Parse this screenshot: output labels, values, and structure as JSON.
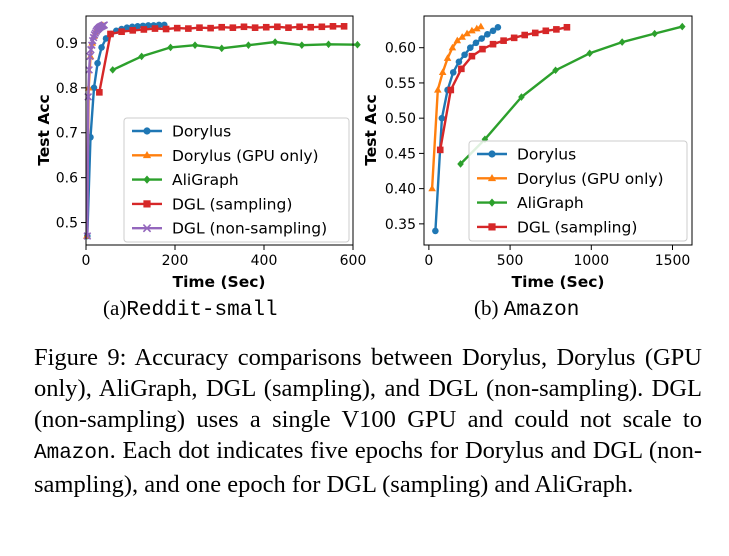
{
  "colors": {
    "Dorylus": "#1f77b4",
    "Dorylus (GPU only)": "#ff7f0e",
    "AliGraph": "#2ca02c",
    "DGL (sampling)": "#d62728",
    "DGL (non-sampling)": "#9467bd"
  },
  "chart_data": [
    {
      "type": "line",
      "xlabel": "Time (Sec)",
      "ylabel": "Test Acc",
      "xlim": [
        0,
        600
      ],
      "ylim": [
        0.45,
        0.96
      ],
      "xticks": [
        0,
        200,
        400,
        600
      ],
      "yticks": [
        0.5,
        0.6,
        0.7,
        0.8,
        0.9
      ],
      "legend_position": "lower-right",
      "series": [
        {
          "name": "Dorylus",
          "marker": "circle",
          "x": [
            3,
            10,
            18,
            26,
            35,
            45,
            56,
            68,
            80,
            92,
            104,
            116,
            128,
            140,
            152,
            164,
            176
          ],
          "y": [
            0.47,
            0.69,
            0.8,
            0.855,
            0.89,
            0.91,
            0.92,
            0.927,
            0.931,
            0.934,
            0.936,
            0.937,
            0.938,
            0.939,
            0.939,
            0.94,
            0.94
          ]
        },
        {
          "name": "Dorylus (GPU only)",
          "marker": "triangle",
          "x": [
            2,
            6,
            10,
            14,
            18,
            22,
            26,
            30,
            34,
            38
          ],
          "y": [
            0.47,
            0.8,
            0.87,
            0.9,
            0.915,
            0.925,
            0.93,
            0.934,
            0.937,
            0.939
          ]
        },
        {
          "name": "AliGraph",
          "marker": "diamond",
          "x": [
            60,
            125,
            190,
            245,
            305,
            365,
            425,
            485,
            545,
            610
          ],
          "y": [
            0.84,
            0.87,
            0.89,
            0.895,
            0.888,
            0.895,
            0.902,
            0.895,
            0.897,
            0.896
          ]
        },
        {
          "name": "DGL (sampling)",
          "marker": "square",
          "x": [
            30,
            55,
            80,
            105,
            130,
            155,
            180,
            205,
            230,
            255,
            280,
            305,
            330,
            355,
            380,
            405,
            430,
            455,
            480,
            505,
            530,
            555,
            580
          ],
          "y": [
            0.79,
            0.92,
            0.925,
            0.928,
            0.93,
            0.932,
            0.931,
            0.933,
            0.932,
            0.934,
            0.933,
            0.935,
            0.934,
            0.936,
            0.934,
            0.935,
            0.936,
            0.934,
            0.936,
            0.935,
            0.936,
            0.937,
            0.937
          ]
        },
        {
          "name": "DGL (non-sampling)",
          "marker": "x",
          "x": [
            3,
            5,
            7,
            9,
            11,
            13,
            15,
            17,
            19,
            21,
            23,
            25,
            27,
            29,
            31,
            33,
            35,
            37,
            39,
            41
          ],
          "y": [
            0.47,
            0.78,
            0.84,
            0.87,
            0.885,
            0.895,
            0.905,
            0.912,
            0.918,
            0.922,
            0.926,
            0.929,
            0.931,
            0.933,
            0.935,
            0.936,
            0.937,
            0.938,
            0.939,
            0.94
          ]
        }
      ]
    },
    {
      "type": "line",
      "xlabel": "Time (Sec)",
      "ylabel": "Test Acc",
      "xlim": [
        -30,
        1620
      ],
      "ylim": [
        0.32,
        0.645
      ],
      "xticks": [
        0,
        500,
        1000,
        1500
      ],
      "yticks": [
        0.35,
        0.4,
        0.45,
        0.5,
        0.55,
        0.6
      ],
      "legend_position": "lower-right",
      "series": [
        {
          "name": "Dorylus",
          "marker": "circle",
          "x": [
            40,
            80,
            115,
            150,
            185,
            220,
            255,
            290,
            325,
            360,
            395,
            425
          ],
          "y": [
            0.34,
            0.5,
            0.54,
            0.565,
            0.58,
            0.59,
            0.6,
            0.607,
            0.613,
            0.619,
            0.624,
            0.629
          ]
        },
        {
          "name": "Dorylus (GPU only)",
          "marker": "triangle",
          "x": [
            20,
            55,
            85,
            115,
            145,
            175,
            205,
            235,
            265,
            295,
            320
          ],
          "y": [
            0.4,
            0.54,
            0.565,
            0.585,
            0.6,
            0.61,
            0.615,
            0.62,
            0.624,
            0.627,
            0.63
          ]
        },
        {
          "name": "AliGraph",
          "marker": "diamond",
          "x": [
            195,
            345,
            570,
            780,
            990,
            1190,
            1390,
            1560
          ],
          "y": [
            0.435,
            0.47,
            0.53,
            0.568,
            0.592,
            0.608,
            0.62,
            0.63
          ]
        },
        {
          "name": "DGL (sampling)",
          "marker": "square",
          "x": [
            70,
            135,
            200,
            265,
            330,
            395,
            460,
            525,
            590,
            655,
            720,
            785,
            850
          ],
          "y": [
            0.455,
            0.54,
            0.57,
            0.588,
            0.598,
            0.605,
            0.61,
            0.614,
            0.618,
            0.621,
            0.624,
            0.626,
            0.629
          ]
        }
      ]
    }
  ],
  "subcaptions": {
    "a_prefix": "(a)",
    "a_name": "Reddit-small",
    "b_prefix": "(b) ",
    "b_name": "Amazon"
  },
  "caption": {
    "part1": "Figure 9: Accuracy comparisons between Dorylus, Dorylus (GPU only), AliGraph, DGL (sampling), and DGL (non-sampling). DGL (non-sampling) uses a single V100 GPU and could not scale to ",
    "mono": "Amazon",
    "part2": ". Each dot indicates five epochs for Dorylus and DGL (non-sampling), and one epoch for DGL (sampling) and AliGraph."
  }
}
